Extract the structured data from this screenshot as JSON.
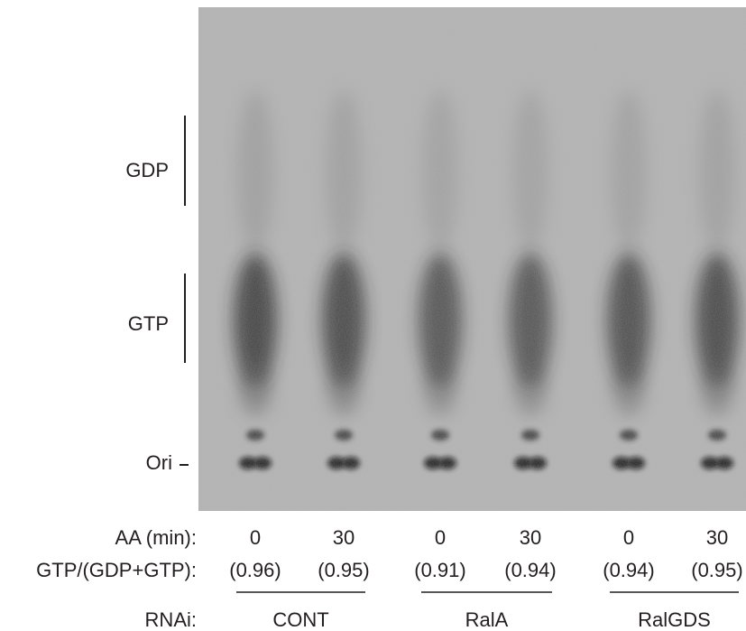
{
  "markers": [
    "GDP",
    "GTP",
    "Ori"
  ],
  "row_labels": {
    "time": "AA (min):",
    "ratio": "GTP/(GDP+GTP):",
    "rnai": "RNAi:"
  },
  "lanes": [
    {
      "time": "0",
      "ratio": "(0.96)"
    },
    {
      "time": "30",
      "ratio": "(0.95)"
    },
    {
      "time": "0",
      "ratio": "(0.91)"
    },
    {
      "time": "30",
      "ratio": "(0.94)"
    },
    {
      "time": "0",
      "ratio": "(0.94)"
    },
    {
      "time": "30",
      "ratio": "(0.95)"
    }
  ],
  "groups": [
    "CONT",
    "RalA",
    "RalGDS"
  ]
}
